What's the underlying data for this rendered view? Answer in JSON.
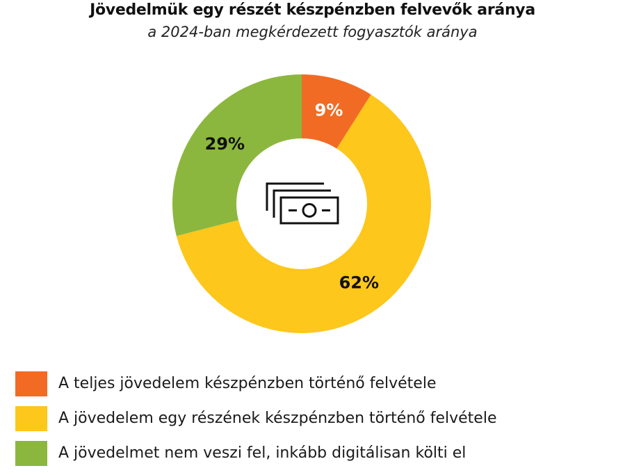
{
  "header": {
    "title": "Jövedelmük egy részét készpénzben felvevők aránya",
    "subtitle": "a 2024-ban megkérdezett fogyasztók aránya"
  },
  "chart_data": {
    "type": "pie",
    "style": "donut",
    "center_icon": "banknotes-icon",
    "slices": [
      {
        "label": "A teljes jövedelem készpénzben történő felvétele",
        "value": 9,
        "display": "9%",
        "color": "#F26B24",
        "label_color": "#ffffff"
      },
      {
        "label": "A jövedelem egy részének készpénzben történő felvétele",
        "value": 62,
        "display": "62%",
        "color": "#FDC71B",
        "label_color": "#111111"
      },
      {
        "label": "A jövedelmet nem veszi fel, inkább digitálisan költi el",
        "value": 29,
        "display": "29%",
        "color": "#8CB73E",
        "label_color": "#111111"
      }
    ]
  },
  "legend": {
    "items": [
      {
        "label": "A teljes jövedelem készpénzben történő felvétele",
        "color": "#F26B24"
      },
      {
        "label": "A jövedelem egy részének készpénzben történő felvétele",
        "color": "#FDC71B"
      },
      {
        "label": "A jövedelmet nem veszi fel, inkább digitálisan költi el",
        "color": "#8CB73E"
      }
    ]
  }
}
